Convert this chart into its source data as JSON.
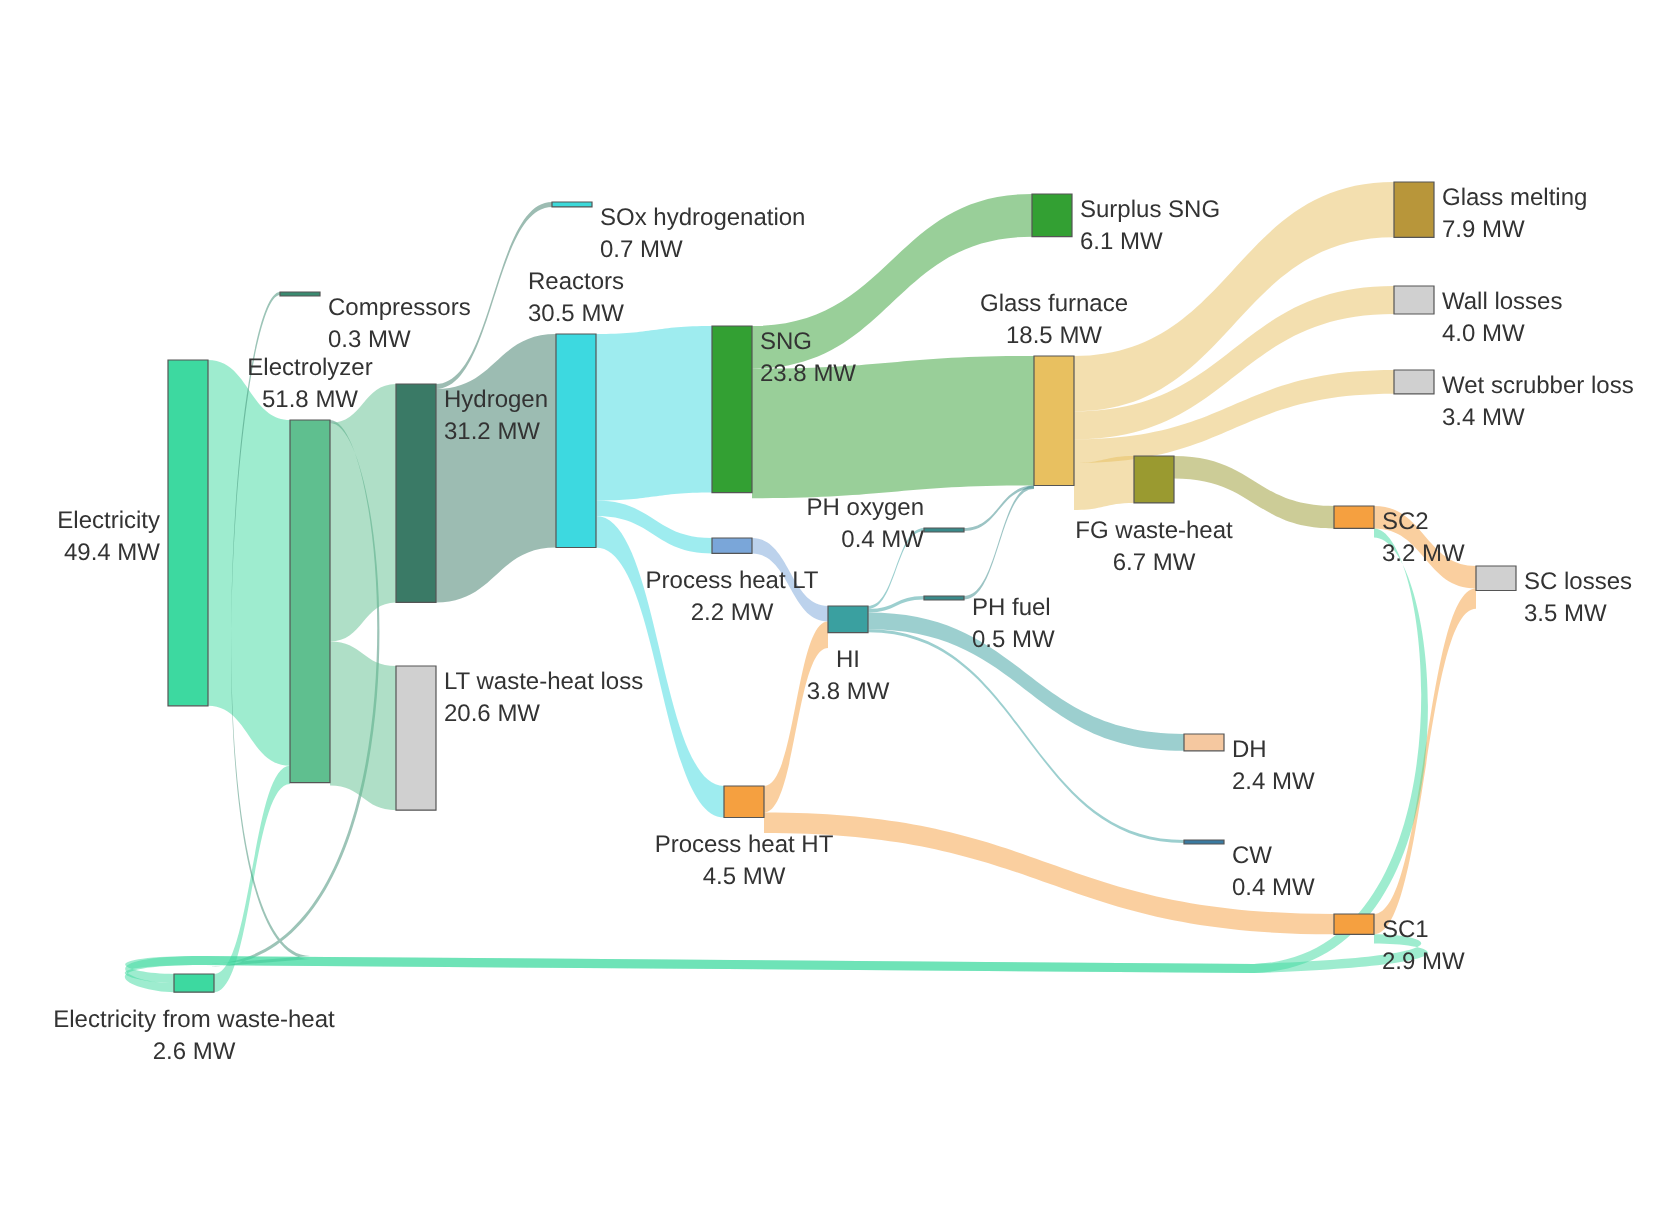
{
  "chart_data": {
    "type": "other",
    "categories": [
      "Electricity",
      "Electrolyzer",
      "Compressors",
      "Hydrogen",
      "LT waste-heat loss",
      "Electricity from waste-heat",
      "SOx hydrogenation",
      "Reactors",
      "SNG",
      "Process heat LT",
      "Process heat HT",
      "Surplus SNG",
      "Glass furnace",
      "PH oxygen",
      "PH fuel",
      "HI",
      "FG waste-heat",
      "DH",
      "CW",
      "Glass melting",
      "Wall losses",
      "Wet scrubber loss",
      "SC2",
      "SC1",
      "SC losses"
    ],
    "values": [
      49.4,
      51.8,
      0.3,
      31.2,
      20.6,
      2.6,
      0.7,
      30.5,
      23.8,
      2.2,
      4.5,
      6.1,
      18.5,
      0.4,
      0.5,
      3.8,
      6.7,
      2.4,
      0.4,
      7.9,
      4.0,
      3.4,
      3.2,
      2.9,
      3.5
    ],
    "value_labels": [
      "49.4 MW",
      "51.8 MW",
      "0.3 MW",
      "31.2 MW",
      "20.6 MW",
      "2.6 MW",
      "0.7 MW",
      "30.5 MW",
      "23.8 MW",
      "2.2 MW",
      "4.5 MW",
      "6.1 MW",
      "18.5 MW",
      "0.4 MW",
      "0.5 MW",
      "3.8 MW",
      "6.7 MW",
      "2.4 MW",
      "0.4 MW",
      "7.9 MW",
      "4.0 MW",
      "3.4 MW",
      "3.2 MW",
      "2.9 MW",
      "3.5 MW"
    ],
    "colors": [
      "#3dd9a0",
      "#5fbf8f",
      "#3a8a70",
      "#3a7a66",
      "#d0d0d0",
      "#3dd9a0",
      "#3dd9d9",
      "#3dd9e0",
      "#33a033",
      "#7aa6d9",
      "#f5a040",
      "#33a033",
      "#e8c060",
      "#3a8a8a",
      "#3a8a8a",
      "#3aa0a0",
      "#9a9a30",
      "#f5c8a0",
      "#3a7aa0",
      "#b8963a",
      "#d0d0d0",
      "#d0d0d0",
      "#f5a040",
      "#f5a040",
      "#d0d0d0"
    ]
  }
}
